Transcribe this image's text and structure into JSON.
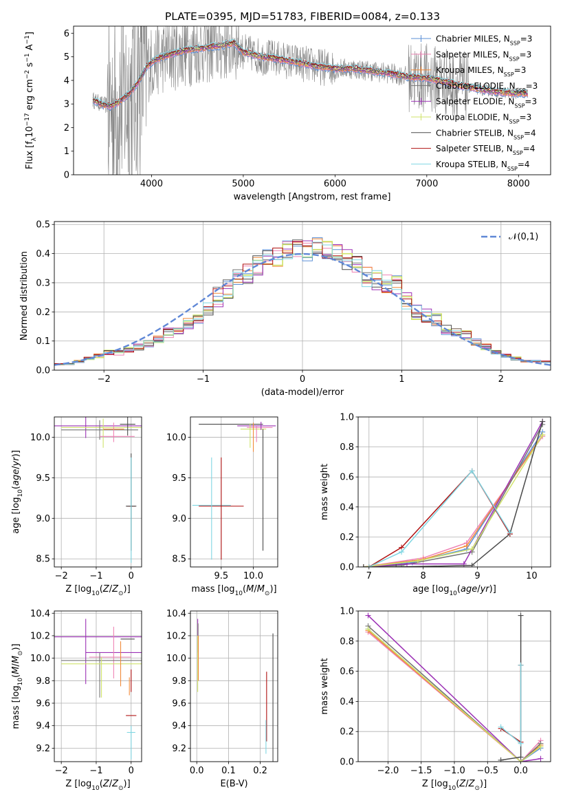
{
  "figure_title": "PLATE=0395, MJD=51783, FIBERID=0084, z=0.133",
  "legend_names": [
    "Chabrier MILES, N_SSP=3",
    "Salpeter MILES, N_SSP=3",
    "Kroupa MILES, N_SSP=3",
    "Chabrier ELODIE, N_SSP=3",
    "Salpeter ELODIE, N_SSP=3",
    "Kroupa ELODIE, N_SSP=3",
    "Chabrier STELIB, N_SSP=4",
    "Salpeter STELIB, N_SSP=4",
    "Kroupa STELIB, N_SSP=4"
  ],
  "legend_html": [
    "Chabrier MILES, N<tspan baseline-shift='sub' font-size='8'>SSP</tspan>=3",
    "Salpeter MILES, N<tspan baseline-shift='sub' font-size='8'>SSP</tspan>=3",
    "Kroupa MILES, N<tspan baseline-shift='sub' font-size='8'>SSP</tspan>=3",
    "Chabrier ELODIE, N<tspan baseline-shift='sub' font-size='8'>SSP</tspan>=3",
    "Salpeter ELODIE, N<tspan baseline-shift='sub' font-size='8'>SSP</tspan>=3",
    "Kroupa ELODIE, N<tspan baseline-shift='sub' font-size='8'>SSP</tspan>=3",
    "Chabrier STELIB, N<tspan baseline-shift='sub' font-size='8'>SSP</tspan>=4",
    "Salpeter STELIB, N<tspan baseline-shift='sub' font-size='8'>SSP</tspan>=4",
    "Kroupa STELIB, N<tspan baseline-shift='sub' font-size='8'>SSP</tspan>=4"
  ],
  "series_colors": [
    "#5b8fd6",
    "#ee82b4",
    "#f08a3a",
    "#737373",
    "#9b30b5",
    "#cfe36a",
    "#4a4a4a",
    "#b01010",
    "#7fd6e2"
  ],
  "chart_data": [
    {
      "id": "spectrum",
      "type": "line",
      "title": "PLATE=0395, MJD=51783, FIBERID=0084, z=0.133",
      "xlabel": "wavelength [Angstrom, rest frame]",
      "ylabel": "Flux [f_λ 10^-17 erg cm^-2 s^-1 A^-1]",
      "xlim": [
        3150,
        8350
      ],
      "ylim": [
        0,
        6.3
      ],
      "xticks": [
        4000,
        5000,
        6000,
        7000,
        8000
      ],
      "yticks": [
        0,
        1,
        2,
        3,
        4,
        5,
        6
      ],
      "grid": false,
      "legend_placement": "right",
      "data_color": "#808080",
      "continuum_model": {
        "x": [
          3350,
          3450,
          3550,
          3650,
          3750,
          3850,
          3950,
          4050,
          4200,
          4400,
          4600,
          4800,
          4900,
          5000,
          5200,
          5400,
          5600,
          5800,
          6000,
          6200,
          6400,
          6600,
          6800,
          7000,
          7200,
          7400,
          7600,
          7800,
          8000,
          8100
        ],
        "y": [
          3.2,
          3.0,
          2.9,
          3.1,
          3.4,
          3.9,
          4.6,
          4.9,
          5.1,
          5.3,
          5.4,
          5.5,
          5.6,
          5.2,
          5.0,
          4.9,
          4.75,
          4.6,
          4.5,
          4.5,
          4.4,
          4.3,
          4.15,
          4.1,
          3.95,
          3.75,
          3.6,
          3.5,
          3.45,
          3.45
        ]
      }
    },
    {
      "id": "residuals",
      "type": "line",
      "xlabel": "(data-model)/error",
      "ylabel": "Normed distribution",
      "xlim": [
        -2.5,
        2.5
      ],
      "ylim": [
        0,
        0.51
      ],
      "xticks": [
        -2,
        -1,
        0,
        1,
        2
      ],
      "yticks": [
        0.0,
        0.1,
        0.2,
        0.3,
        0.4,
        0.5
      ],
      "grid": true,
      "legend_entries": [
        "𝒩(0,1)"
      ],
      "legend_placement": "upper right",
      "gaussian": {
        "mean": 0,
        "sigma": 1
      },
      "histogram": {
        "bin_width": 0.1,
        "bins_start": -2.5,
        "base_values": [
          0.02,
          0.02,
          0.03,
          0.04,
          0.05,
          0.06,
          0.06,
          0.07,
          0.08,
          0.09,
          0.11,
          0.13,
          0.14,
          0.16,
          0.18,
          0.21,
          0.25,
          0.28,
          0.32,
          0.33,
          0.36,
          0.38,
          0.39,
          0.41,
          0.42,
          0.41,
          0.42,
          0.41,
          0.4,
          0.38,
          0.36,
          0.32,
          0.31,
          0.3,
          0.29,
          0.24,
          0.2,
          0.19,
          0.17,
          0.14,
          0.13,
          0.12,
          0.1,
          0.08,
          0.06,
          0.05,
          0.04,
          0.03,
          0.03,
          0.03
        ]
      }
    },
    {
      "id": "age-vs-Z",
      "type": "scatter",
      "xlabel": "Z [log10(Z/Z⊙)]",
      "ylabel": "age [log10(age/yr)]",
      "xlim": [
        -2.2,
        0.3
      ],
      "ylim": [
        8.4,
        10.25
      ],
      "xticks": [
        -2,
        -1,
        0
      ],
      "yticks": [
        8.5,
        9.0,
        9.5,
        10.0
      ],
      "grid": true,
      "errorbars": [
        {
          "x": -0.8,
          "y": 10.14,
          "xerr": 1.4,
          "yerr": 0.0,
          "s": 4
        },
        {
          "x": -1.3,
          "y": 10.14,
          "xerr": 0.0,
          "yerr": 0.15,
          "s": 4
        },
        {
          "x": -0.6,
          "y": 10.12,
          "xerr": 1.4,
          "yerr": 0.0,
          "s": 5
        },
        {
          "x": -0.9,
          "y": 10.09,
          "xerr": 1.1,
          "yerr": 0.0,
          "s": 3
        },
        {
          "x": -0.9,
          "y": 10.09,
          "xerr": 0.0,
          "yerr": 0.12,
          "s": 3
        },
        {
          "x": -0.8,
          "y": 10.05,
          "xerr": 0.0,
          "yerr": 0.18,
          "s": 5
        },
        {
          "x": -0.5,
          "y": 10.06,
          "xerr": 0.0,
          "yerr": 0.12,
          "s": 1
        },
        {
          "x": -0.4,
          "y": 10.01,
          "xerr": 0.5,
          "yerr": 0.0,
          "s": 1
        },
        {
          "x": -0.1,
          "y": 10.16,
          "xerr": 0.22,
          "yerr": 0.0,
          "s": 6
        },
        {
          "x": -0.1,
          "y": 10.14,
          "xerr": 0.0,
          "yerr": 0.12,
          "s": 6
        },
        {
          "x": -0.5,
          "y": 10.1,
          "xerr": 0.3,
          "yerr": 0.0,
          "s": 2
        },
        {
          "x": 0.0,
          "y": 9.15,
          "xerr": 0.12,
          "yerr": 0.0,
          "s": 7
        },
        {
          "x": 0.0,
          "y": 9.15,
          "xerr": 0.15,
          "yerr": 0.0,
          "s": 6
        },
        {
          "x": 0.0,
          "y": 9.2,
          "xerr": 0.0,
          "yerr": 0.6,
          "s": 6
        },
        {
          "x": 0.0,
          "y": 9.1,
          "xerr": 0.0,
          "yerr": 0.65,
          "s": 8
        }
      ]
    },
    {
      "id": "age-vs-mass",
      "type": "scatter",
      "xlabel": "mass [log10(M/M⊙)]",
      "ylabel": "",
      "xlim": [
        9.02,
        10.38
      ],
      "ylim": [
        8.4,
        10.25
      ],
      "xticks": [
        9.5,
        10.0
      ],
      "yticks": [
        8.5,
        9.0,
        9.5,
        10.0
      ],
      "grid": true,
      "errorbars": [
        {
          "x": 9.65,
          "y": 10.16,
          "xerr": 0.5,
          "yerr": 0.0,
          "s": 6
        },
        {
          "x": 10.05,
          "y": 10.14,
          "xerr": 0.3,
          "yerr": 0.0,
          "s": 4
        },
        {
          "x": 10.1,
          "y": 10.12,
          "xerr": 0.2,
          "yerr": 0.0,
          "s": 1
        },
        {
          "x": 10.0,
          "y": 10.1,
          "xerr": 0.2,
          "yerr": 0.0,
          "s": 5
        },
        {
          "x": 9.95,
          "y": 10.02,
          "xerr": 0.0,
          "yerr": 0.15,
          "s": 5
        },
        {
          "x": 10.0,
          "y": 10.0,
          "xerr": 0.0,
          "yerr": 0.18,
          "s": 2
        },
        {
          "x": 10.05,
          "y": 10.04,
          "xerr": 0.0,
          "yerr": 0.1,
          "s": 1
        },
        {
          "x": 10.12,
          "y": 10.14,
          "xerr": 0.0,
          "yerr": 0.05,
          "s": 4
        },
        {
          "x": 10.15,
          "y": 9.35,
          "xerr": 0.0,
          "yerr": 0.75,
          "s": 6
        },
        {
          "x": 9.5,
          "y": 9.15,
          "xerr": 0.35,
          "yerr": 0.0,
          "s": 7
        },
        {
          "x": 9.35,
          "y": 9.16,
          "xerr": 0.3,
          "yerr": 0.0,
          "s": 8
        },
        {
          "x": 9.5,
          "y": 9.12,
          "xerr": 0.0,
          "yerr": 0.63,
          "s": 7
        },
        {
          "x": 9.35,
          "y": 9.12,
          "xerr": 0.0,
          "yerr": 0.63,
          "s": 8
        }
      ]
    },
    {
      "id": "massweight-vs-age",
      "type": "line",
      "xlabel": "age [log10(age/yr)]",
      "ylabel": "mass weight",
      "xlim": [
        6.8,
        10.35
      ],
      "ylim": [
        0,
        1.0
      ],
      "xticks": [
        7,
        8,
        9,
        10
      ],
      "yticks": [
        0.0,
        0.2,
        0.4,
        0.6,
        0.8,
        1.0
      ],
      "grid": true,
      "series": [
        {
          "s": 0,
          "x": [
            6.9,
            7.8,
            8.8,
            10.2
          ],
          "y": [
            0.0,
            0.03,
            0.12,
            0.9
          ]
        },
        {
          "s": 1,
          "x": [
            6.9,
            8.0,
            8.8,
            10.2
          ],
          "y": [
            0.0,
            0.06,
            0.16,
            0.87
          ]
        },
        {
          "s": 2,
          "x": [
            6.9,
            8.0,
            8.8,
            10.2
          ],
          "y": [
            0.0,
            0.05,
            0.14,
            0.88
          ]
        },
        {
          "s": 3,
          "x": [
            6.9,
            7.6,
            8.9,
            10.2
          ],
          "y": [
            0.0,
            0.01,
            0.1,
            0.95
          ]
        },
        {
          "s": 4,
          "x": [
            6.9,
            7.7,
            8.75,
            10.2
          ],
          "y": [
            0.0,
            0.02,
            0.02,
            0.97
          ]
        },
        {
          "s": 5,
          "x": [
            6.9,
            7.9,
            8.9,
            10.2
          ],
          "y": [
            0.0,
            0.04,
            0.12,
            0.88
          ]
        },
        {
          "s": 6,
          "x": [
            6.9,
            7.5,
            8.9,
            9.6,
            10.2
          ],
          "y": [
            0.0,
            0.0,
            0.01,
            0.22,
            0.97
          ]
        },
        {
          "s": 7,
          "x": [
            7.0,
            7.6,
            8.9,
            9.6
          ],
          "y": [
            0.0,
            0.13,
            0.64,
            0.22
          ]
        },
        {
          "s": 8,
          "x": [
            7.0,
            7.6,
            8.9,
            9.6
          ],
          "y": [
            0.0,
            0.1,
            0.64,
            0.23
          ]
        }
      ]
    },
    {
      "id": "mass-vs-Z",
      "type": "scatter",
      "xlabel": "Z [log10(Z/Z⊙)]",
      "ylabel": "mass [log10(M/M⊙)]",
      "xlim": [
        -2.2,
        0.3
      ],
      "ylim": [
        9.08,
        10.42
      ],
      "xticks": [
        -2,
        -1,
        0
      ],
      "yticks": [
        9.2,
        9.4,
        9.6,
        9.8,
        10.0,
        10.2,
        10.4
      ],
      "grid": true,
      "errorbars": [
        {
          "x": -0.8,
          "y": 10.19,
          "xerr": 1.4,
          "yerr": 0.0,
          "s": 4
        },
        {
          "x": -1.3,
          "y": 10.06,
          "xerr": 0.0,
          "yerr": 0.29,
          "s": 4
        },
        {
          "x": -0.4,
          "y": 10.05,
          "xerr": 0.9,
          "yerr": 0.0,
          "s": 4
        },
        {
          "x": -0.5,
          "y": 10.05,
          "xerr": 0.0,
          "yerr": 0.23,
          "s": 1
        },
        {
          "x": -0.6,
          "y": 10.01,
          "xerr": 0.6,
          "yerr": 0.0,
          "s": 1
        },
        {
          "x": -0.6,
          "y": 9.98,
          "xerr": 1.4,
          "yerr": 0.0,
          "s": 3
        },
        {
          "x": -0.9,
          "y": 9.85,
          "xerr": 0.0,
          "yerr": 0.2,
          "s": 3
        },
        {
          "x": -0.6,
          "y": 9.95,
          "xerr": 1.4,
          "yerr": 0.0,
          "s": 5
        },
        {
          "x": -0.85,
          "y": 9.83,
          "xerr": 0.0,
          "yerr": 0.18,
          "s": 5
        },
        {
          "x": -0.3,
          "y": 9.95,
          "xerr": 0.0,
          "yerr": 0.2,
          "s": 2
        },
        {
          "x": -0.1,
          "y": 10.17,
          "xerr": 0.2,
          "yerr": 0.0,
          "s": 6
        },
        {
          "x": 0.0,
          "y": 9.49,
          "xerr": 0.15,
          "yerr": 0.0,
          "s": 7
        },
        {
          "x": 0.0,
          "y": 9.34,
          "xerr": 0.12,
          "yerr": 0.0,
          "s": 8
        },
        {
          "x": 0.0,
          "y": 9.8,
          "xerr": 0.0,
          "yerr": 0.1,
          "s": 7
        },
        {
          "x": 0.0,
          "y": 9.25,
          "xerr": 0.0,
          "yerr": 0.15,
          "s": 8
        },
        {
          "x": -0.05,
          "y": 9.75,
          "xerr": 0.0,
          "yerr": 0.08,
          "s": 2
        }
      ]
    },
    {
      "id": "mass-vs-ebv",
      "type": "scatter",
      "xlabel": "E(B-V)",
      "ylabel": "",
      "xlim": [
        -0.02,
        0.255
      ],
      "ylim": [
        9.08,
        10.42
      ],
      "xticks": [
        0.0,
        0.1,
        0.2
      ],
      "yticks": [
        9.2,
        9.4,
        9.6,
        9.8,
        10.0,
        10.2,
        10.4
      ],
      "grid": true,
      "errorbars": [
        {
          "x": 0.003,
          "y": 10.2,
          "xerr": 0.0,
          "yerr": 0.15,
          "s": 4
        },
        {
          "x": 0.004,
          "y": 10.18,
          "xerr": 0.0,
          "yerr": 0.12,
          "s": 1
        },
        {
          "x": 0.004,
          "y": 10.06,
          "xerr": 0.0,
          "yerr": 0.25,
          "s": 3
        },
        {
          "x": 0.003,
          "y": 9.95,
          "xerr": 0.0,
          "yerr": 0.25,
          "s": 5
        },
        {
          "x": 0.005,
          "y": 10.0,
          "xerr": 0.0,
          "yerr": 0.2,
          "s": 2
        },
        {
          "x": 0.24,
          "y": 9.65,
          "xerr": 0.0,
          "yerr": 0.57,
          "s": 6
        },
        {
          "x": 0.22,
          "y": 9.57,
          "xerr": 0.0,
          "yerr": 0.31,
          "s": 7
        },
        {
          "x": 0.218,
          "y": 9.3,
          "xerr": 0.0,
          "yerr": 0.15,
          "s": 8
        }
      ]
    },
    {
      "id": "massweight-vs-Z",
      "type": "line",
      "xlabel": "Z [log10(Z/Z⊙)]",
      "ylabel": "mass weight",
      "xlim": [
        -2.45,
        0.45
      ],
      "ylim": [
        0,
        1.0
      ],
      "xticks": [
        -2.0,
        -1.5,
        -1.0,
        -0.5,
        0.0
      ],
      "yticks": [
        0.0,
        0.2,
        0.4,
        0.6,
        0.8,
        1.0
      ],
      "grid": true,
      "series": [
        {
          "s": 0,
          "x": [
            -2.3,
            0.0,
            0.3
          ],
          "y": [
            0.88,
            0.0,
            0.09
          ]
        },
        {
          "s": 1,
          "x": [
            -2.3,
            0.0,
            0.3
          ],
          "y": [
            0.86,
            0.0,
            0.14
          ]
        },
        {
          "s": 2,
          "x": [
            -2.3,
            0.0,
            0.3
          ],
          "y": [
            0.87,
            0.0,
            0.11
          ]
        },
        {
          "s": 3,
          "x": [
            -2.3,
            0.0,
            0.3
          ],
          "y": [
            0.9,
            0.0,
            0.12
          ]
        },
        {
          "s": 4,
          "x": [
            -2.3,
            0.0,
            0.3
          ],
          "y": [
            0.97,
            0.0,
            0.02
          ]
        },
        {
          "s": 5,
          "x": [
            -2.3,
            0.0,
            0.3
          ],
          "y": [
            0.88,
            0.0,
            0.1
          ]
        },
        {
          "s": 6,
          "x": [
            -0.3,
            0.0,
            0.0
          ],
          "y": [
            0.01,
            0.03,
            0.97
          ]
        },
        {
          "s": 7,
          "x": [
            -0.3,
            0.0,
            0.0
          ],
          "y": [
            0.22,
            0.13,
            0.64
          ]
        },
        {
          "s": 8,
          "x": [
            -0.3,
            0.0,
            0.0
          ],
          "y": [
            0.23,
            0.12,
            0.64
          ]
        }
      ]
    }
  ]
}
